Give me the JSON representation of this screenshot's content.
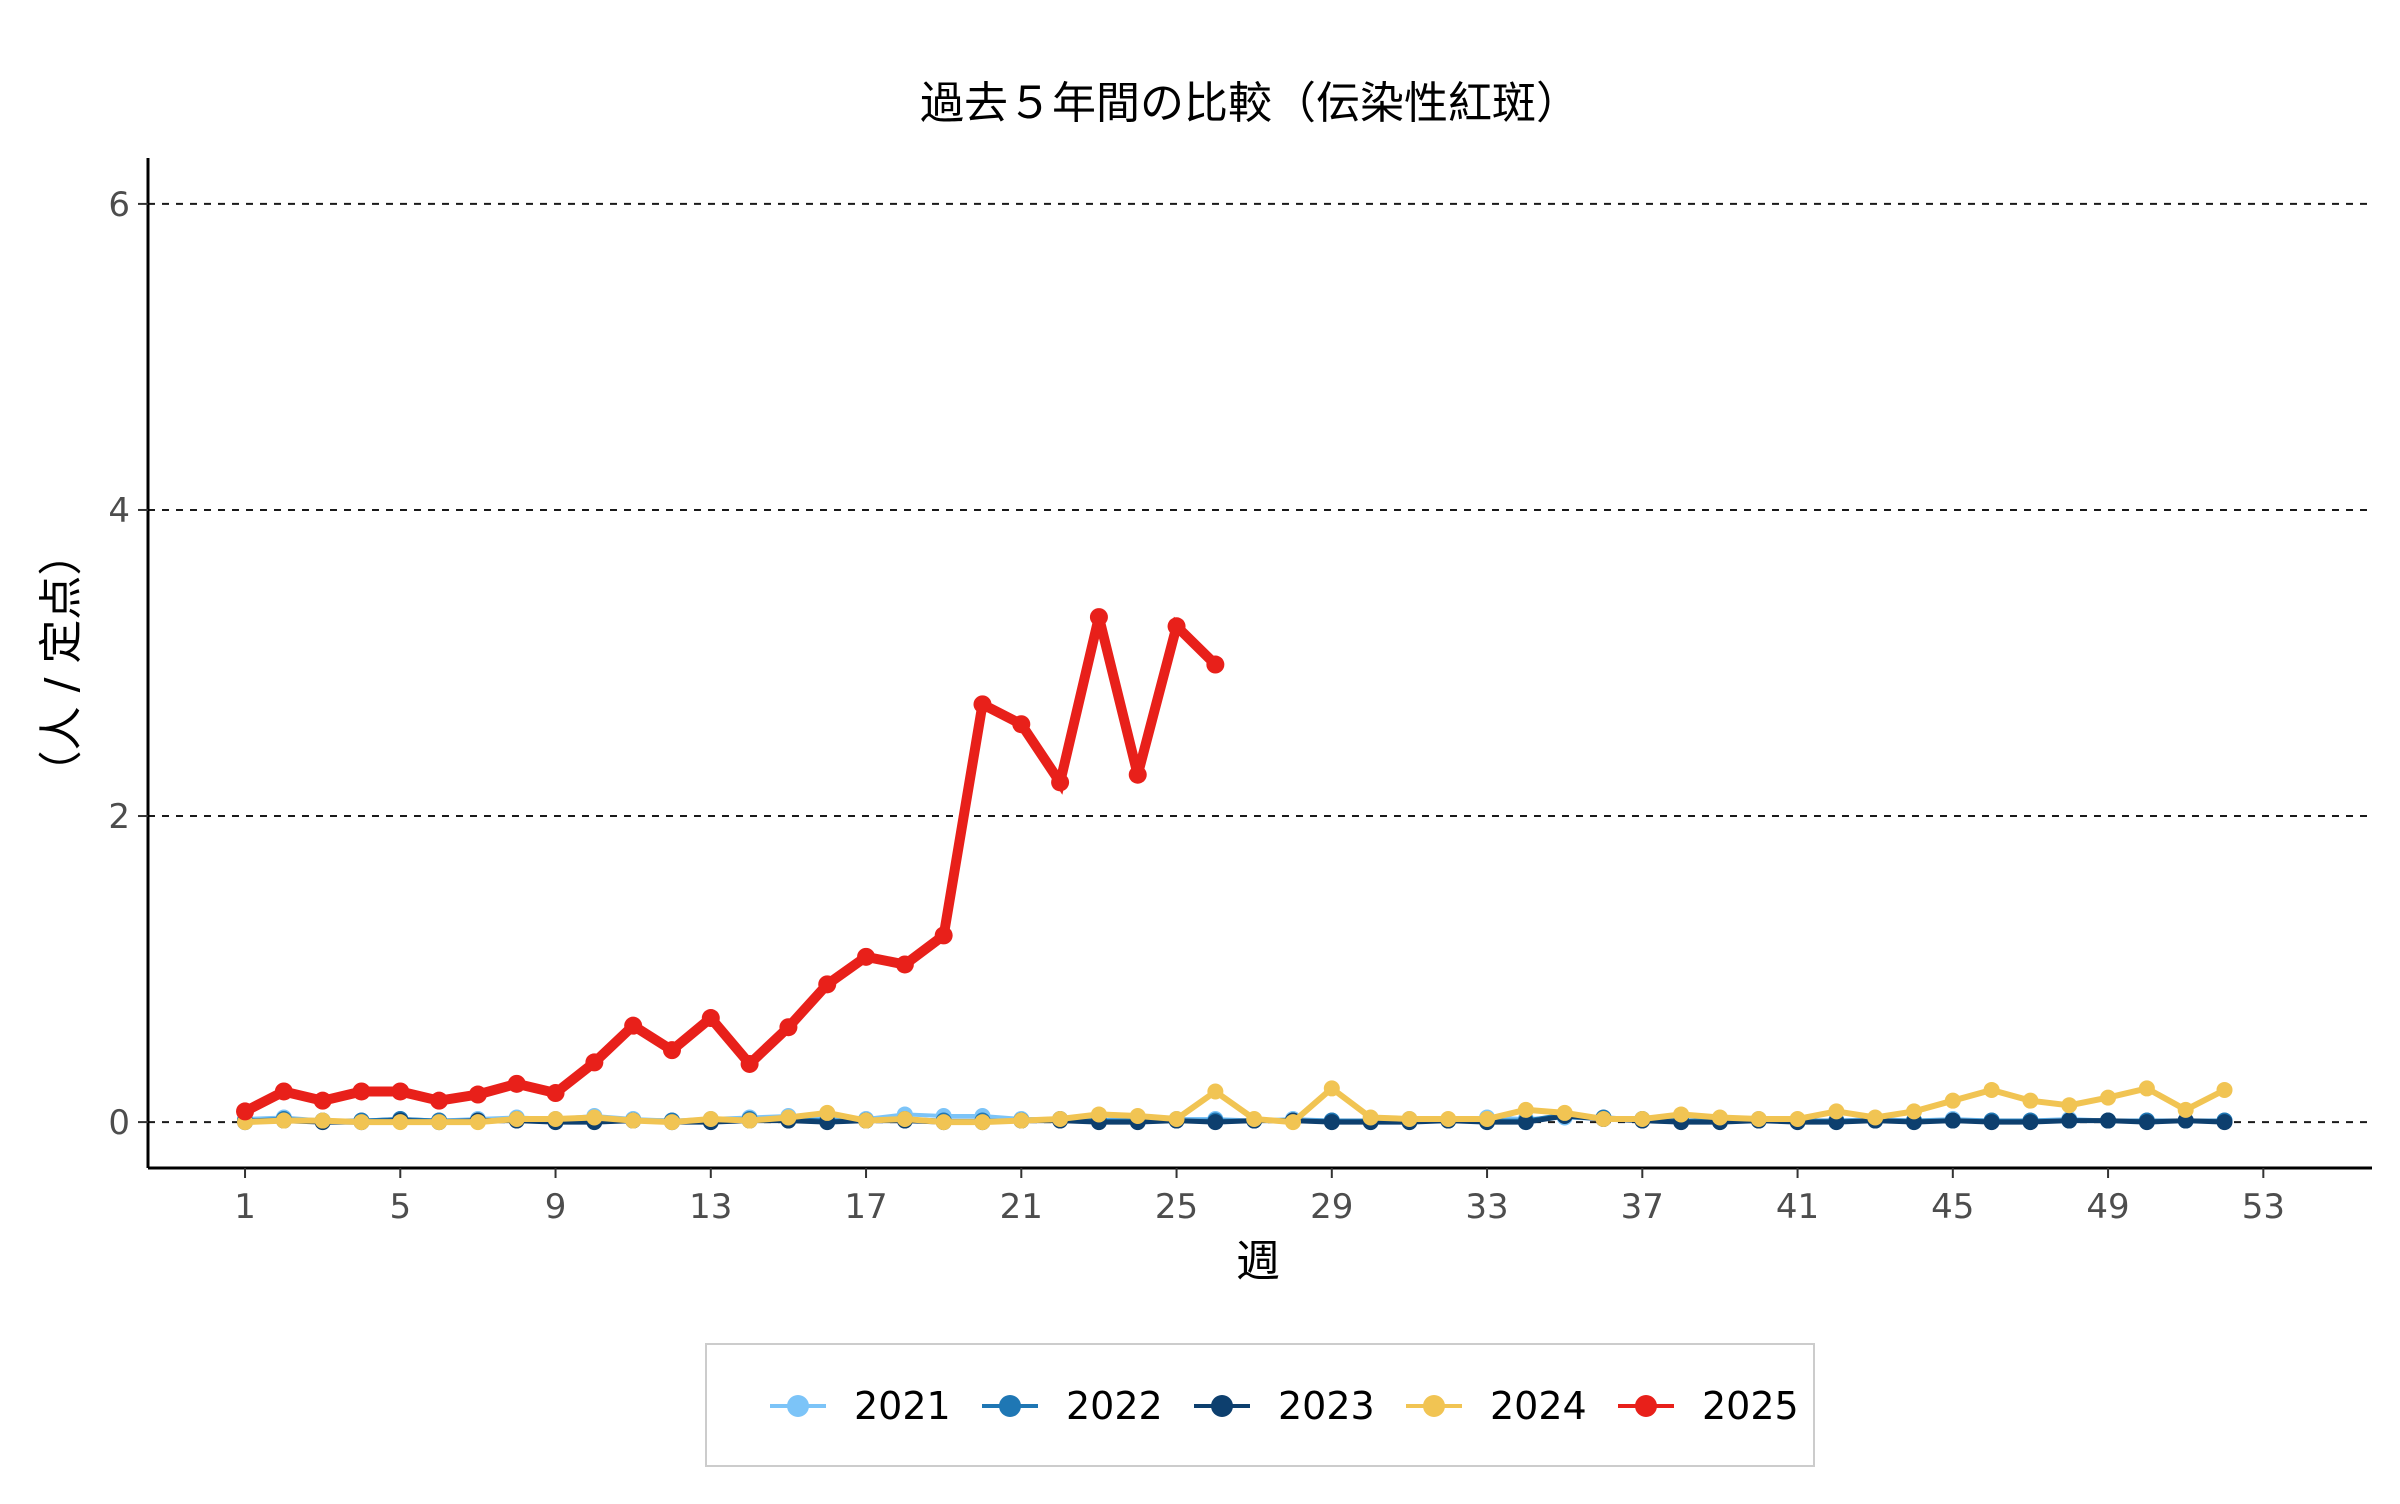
{
  "chart_data": {
    "type": "line",
    "title": "過去５年間の比較（伝染性紅斑）",
    "xlabel": "週",
    "ylabel": "（人 / 定点）",
    "xlim": [
      -1.5,
      55.8
    ],
    "ylim": [
      -0.3,
      6.3
    ],
    "x_ticks": [
      1,
      5,
      9,
      13,
      17,
      21,
      25,
      29,
      33,
      37,
      41,
      45,
      49,
      53
    ],
    "y_ticks": [
      0,
      2,
      4,
      6
    ],
    "grid": "horizontal dashed",
    "legend_position": "bottom",
    "series": [
      {
        "name": "2021",
        "color": "#7cc4f8",
        "x": [
          1,
          2,
          3,
          4,
          5,
          6,
          7,
          8,
          9,
          10,
          11,
          12,
          13,
          14,
          15,
          16,
          17,
          18,
          19,
          20,
          21,
          22,
          23,
          24,
          25,
          26,
          27,
          28,
          29,
          30,
          31,
          32,
          33,
          34,
          35,
          36,
          37,
          38,
          39,
          40,
          41,
          42,
          43,
          44,
          45,
          46,
          47,
          48,
          49,
          50,
          51,
          52
        ],
        "y": [
          0.02,
          0.03,
          0.01,
          0.01,
          0.02,
          0.01,
          0.02,
          0.03,
          0.02,
          0.04,
          0.02,
          0.01,
          0.02,
          0.03,
          0.04,
          0.03,
          0.02,
          0.05,
          0.04,
          0.04,
          0.02,
          0.02,
          0.01,
          0.03,
          0.02,
          0.02,
          0.01,
          0.02,
          0.01,
          0.01,
          0.02,
          0.01,
          0.03,
          0.02,
          0.03,
          0.02,
          0.02,
          0.01,
          0.01,
          0.02,
          0.01,
          0.01,
          0.02,
          0.01,
          0.02,
          0.01,
          0.01,
          0.02,
          0.01,
          0.01,
          0.01,
          0.01
        ]
      },
      {
        "name": "2022",
        "color": "#1f77b4",
        "x": [
          1,
          2,
          3,
          4,
          5,
          6,
          7,
          8,
          9,
          10,
          11,
          12,
          13,
          14,
          15,
          16,
          17,
          18,
          19,
          20,
          21,
          22,
          23,
          24,
          25,
          26,
          27,
          28,
          29,
          30,
          31,
          32,
          33,
          34,
          35,
          36,
          37,
          38,
          39,
          40,
          41,
          42,
          43,
          44,
          45,
          46,
          47,
          48,
          49,
          50,
          51,
          52
        ],
        "y": [
          0.01,
          0.02,
          0.01,
          0.01,
          0.02,
          0.01,
          0.01,
          0.02,
          0.01,
          0.02,
          0.01,
          0.01,
          0.01,
          0.02,
          0.02,
          0.01,
          0.01,
          0.02,
          0.01,
          0.01,
          0.01,
          0.02,
          0.01,
          0.01,
          0.01,
          0.01,
          0.01,
          0.01,
          0.01,
          0.01,
          0.01,
          0.01,
          0.01,
          0.01,
          0.05,
          0.03,
          0.02,
          0.01,
          0.01,
          0.01,
          0.01,
          0.01,
          0.01,
          0.01,
          0.01,
          0.01,
          0.01,
          0.01,
          0.01,
          0.01,
          0.01,
          0.01
        ]
      },
      {
        "name": "2023",
        "color": "#0d3f6e",
        "x": [
          1,
          2,
          3,
          4,
          5,
          6,
          7,
          8,
          9,
          10,
          11,
          12,
          13,
          14,
          15,
          16,
          17,
          18,
          19,
          20,
          21,
          22,
          23,
          24,
          25,
          26,
          27,
          28,
          29,
          30,
          31,
          32,
          33,
          34,
          35,
          36,
          37,
          38,
          39,
          40,
          41,
          42,
          43,
          44,
          45,
          46,
          47,
          48,
          49,
          50,
          51,
          52
        ],
        "y": [
          0,
          0.01,
          0,
          0,
          0.01,
          0,
          0.01,
          0.01,
          0,
          0,
          0.01,
          0,
          0,
          0.01,
          0.01,
          0,
          0.01,
          0.01,
          0,
          0,
          0.01,
          0.01,
          0,
          0,
          0.01,
          0,
          0.01,
          0.01,
          0,
          0,
          0,
          0.01,
          0,
          0,
          0.04,
          0.02,
          0.01,
          0,
          0,
          0.01,
          0,
          0,
          0.01,
          0,
          0.01,
          0,
          0,
          0.01,
          0.01,
          0,
          0.01,
          0
        ]
      },
      {
        "name": "2024",
        "color": "#f1c453",
        "x": [
          1,
          2,
          3,
          4,
          5,
          6,
          7,
          8,
          9,
          10,
          11,
          12,
          13,
          14,
          15,
          16,
          17,
          18,
          19,
          20,
          21,
          22,
          23,
          24,
          25,
          26,
          27,
          28,
          29,
          30,
          31,
          32,
          33,
          34,
          35,
          36,
          37,
          38,
          39,
          40,
          41,
          42,
          43,
          44,
          45,
          46,
          47,
          48,
          49,
          50,
          51,
          52
        ],
        "y": [
          0,
          0.01,
          0.01,
          0,
          0,
          0,
          0,
          0.02,
          0.02,
          0.03,
          0.01,
          0,
          0.02,
          0.01,
          0.03,
          0.06,
          0.01,
          0.02,
          0,
          0,
          0.01,
          0.02,
          0.05,
          0.04,
          0.02,
          0.2,
          0.02,
          0,
          0.22,
          0.03,
          0.02,
          0.02,
          0.02,
          0.08,
          0.06,
          0.02,
          0.02,
          0.05,
          0.03,
          0.02,
          0.02,
          0.07,
          0.03,
          0.07,
          0.14,
          0.21,
          0.14,
          0.11,
          0.16,
          0.22,
          0.08,
          0.21
        ]
      },
      {
        "name": "2025",
        "color": "#e8201a",
        "x": [
          1,
          2,
          3,
          4,
          5,
          6,
          7,
          8,
          9,
          10,
          11,
          12,
          13,
          14,
          15,
          16,
          17,
          18,
          19,
          20,
          21,
          22,
          23,
          24,
          25,
          26
        ],
        "y": [
          0.07,
          0.2,
          0.14,
          0.2,
          0.2,
          0.14,
          0.18,
          0.25,
          0.19,
          0.39,
          0.63,
          0.47,
          0.68,
          0.38,
          0.62,
          0.9,
          1.08,
          1.03,
          1.22,
          2.73,
          2.6,
          2.22,
          3.3,
          2.27,
          3.24,
          2.99
        ]
      }
    ]
  }
}
